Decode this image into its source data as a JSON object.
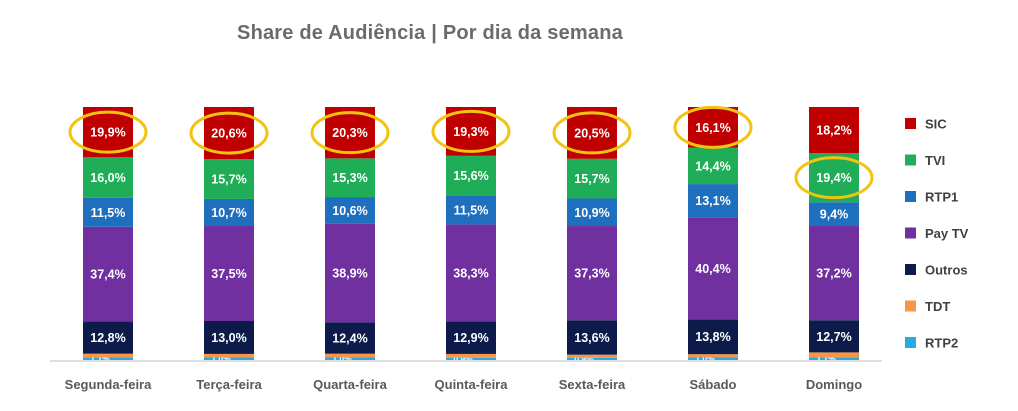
{
  "chart_data": {
    "type": "bar",
    "stacked": true,
    "title": "Share de Audiência | Por dia da semana",
    "categories": [
      "Segunda-feira",
      "Terça-feira",
      "Quarta-feira",
      "Quinta-feira",
      "Sexta-feira",
      "Sábado",
      "Domingo"
    ],
    "series": [
      {
        "name": "RTP2",
        "color": "#29abe2",
        "values": [
          1.1,
          1.0,
          1.0,
          0.9,
          0.9,
          1.0,
          1.1
        ],
        "labels": [
          "1,1%",
          "1,0%",
          "1,0%",
          "0,9%",
          "0,9%",
          "1,0%",
          "1,1%"
        ]
      },
      {
        "name": "TDT",
        "color": "#f79646",
        "values": [
          1.4,
          1.4,
          1.5,
          1.5,
          1.2,
          1.3,
          1.9
        ],
        "labels": [
          "1,4%",
          "1,4%",
          "1,5%",
          "1,5%",
          "1,2%",
          "1,3%",
          "1,9%"
        ]
      },
      {
        "name": "Outros",
        "color": "#0d1b4b",
        "values": [
          12.8,
          13.0,
          12.4,
          12.9,
          13.6,
          13.8,
          12.7
        ],
        "labels": [
          "12,8%",
          "13,0%",
          "12,4%",
          "12,9%",
          "13,6%",
          "13,8%",
          "12,7%"
        ]
      },
      {
        "name": "Pay TV",
        "color": "#7030a0",
        "values": [
          37.4,
          37.5,
          38.9,
          38.3,
          37.3,
          40.4,
          37.2
        ],
        "labels": [
          "37,4%",
          "37,5%",
          "38,9%",
          "38,3%",
          "37,3%",
          "40,4%",
          "37,2%"
        ]
      },
      {
        "name": "RTP1",
        "color": "#1f6fbf",
        "values": [
          11.5,
          10.7,
          10.6,
          11.5,
          10.9,
          13.1,
          9.4
        ],
        "labels": [
          "11,5%",
          "10,7%",
          "10,6%",
          "11,5%",
          "10,9%",
          "13,1%",
          "9,4%"
        ]
      },
      {
        "name": "TVI",
        "color": "#1fae57",
        "values": [
          16.0,
          15.7,
          15.3,
          15.6,
          15.7,
          14.4,
          19.4
        ],
        "labels": [
          "16,0%",
          "15,7%",
          "15,3%",
          "15,6%",
          "15,7%",
          "14,4%",
          "19,4%"
        ]
      },
      {
        "name": "SIC",
        "color": "#c00000",
        "values": [
          19.9,
          20.6,
          20.3,
          19.3,
          20.5,
          16.1,
          18.2
        ],
        "labels": [
          "19,9%",
          "20,6%",
          "20,3%",
          "19,3%",
          "20,5%",
          "16,1%",
          "18,2%"
        ]
      }
    ],
    "legend_order": [
      "SIC",
      "TVI",
      "RTP1",
      "Pay TV",
      "Outros",
      "TDT",
      "RTP2"
    ],
    "legend_position": "right",
    "ylim": [
      0,
      100
    ],
    "grid": false,
    "highlights": [
      {
        "category": "Segunda-feira",
        "series": "SIC"
      },
      {
        "category": "Terça-feira",
        "series": "SIC"
      },
      {
        "category": "Quarta-feira",
        "series": "SIC"
      },
      {
        "category": "Quinta-feira",
        "series": "SIC"
      },
      {
        "category": "Sexta-feira",
        "series": "SIC"
      },
      {
        "category": "Sábado",
        "series": "SIC"
      },
      {
        "category": "Domingo",
        "series": "TVI"
      }
    ],
    "highlight_color": "#f2c311"
  }
}
